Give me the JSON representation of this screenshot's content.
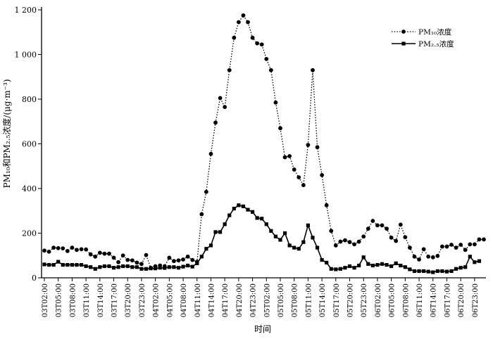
{
  "chart_data": {
    "type": "line",
    "xlabel": "时间",
    "ylabel": "PM₁₀和PM₂.₅浓度/(μg·m⁻³)",
    "ylim": [
      0,
      1200
    ],
    "yticks": [
      0,
      200,
      400,
      600,
      800,
      1000,
      1200
    ],
    "ytick_labels": [
      "0",
      "200",
      "400",
      "600",
      "800",
      "1 000",
      "1 200"
    ],
    "xtick_labels": [
      "03T02:00",
      "03T05:00",
      "03T08:00",
      "03T11:00",
      "03T14:00",
      "03T17:00",
      "03T20:00",
      "03T23:00",
      "04T02:00",
      "04T05:00",
      "04T08:00",
      "04T11:00",
      "04T14:00",
      "04T17:00",
      "04T20:00",
      "04T23:00",
      "05T02:00",
      "05T05:00",
      "05T08:00",
      "05T11:00",
      "05T14:00",
      "05T17:00",
      "05T20:00",
      "05T23:00",
      "06T02:00",
      "06T05:00",
      "06T08:00",
      "06T11:00",
      "06T14:00",
      "06T17:00",
      "06T20:00",
      "06T23:00"
    ],
    "legend_position": "top-right",
    "series": [
      {
        "name": "PM₁₀浓度",
        "marker": "circle",
        "line": "dotted",
        "values": [
          122,
          117,
          135,
          133,
          132,
          120,
          135,
          125,
          128,
          127,
          105,
          95,
          112,
          108,
          108,
          90,
          70,
          100,
          80,
          78,
          68,
          62,
          102,
          45,
          52,
          55,
          52,
          90,
          75,
          78,
          82,
          95,
          80,
          72,
          285,
          385,
          555,
          695,
          805,
          765,
          930,
          1075,
          1145,
          1175,
          1145,
          1075,
          1050,
          1045,
          980,
          930,
          785,
          670,
          540,
          545,
          485,
          450,
          415,
          595,
          930,
          585,
          460,
          325,
          210,
          145,
          162,
          168,
          160,
          150,
          162,
          185,
          220,
          255,
          235,
          235,
          220,
          180,
          165,
          238,
          182,
          135,
          95,
          82,
          128,
          95,
          92,
          98,
          140,
          140,
          148,
          135,
          148,
          125,
          150,
          150,
          172,
          172
        ]
      },
      {
        "name": "PM₂.₅浓度",
        "marker": "square",
        "line": "solid",
        "values": [
          60,
          58,
          58,
          72,
          58,
          58,
          58,
          58,
          58,
          52,
          48,
          40,
          48,
          52,
          52,
          45,
          48,
          52,
          52,
          48,
          48,
          40,
          40,
          42,
          42,
          45,
          44,
          48,
          48,
          45,
          50,
          55,
          50,
          65,
          95,
          130,
          145,
          205,
          205,
          240,
          280,
          310,
          325,
          320,
          305,
          295,
          268,
          265,
          240,
          210,
          185,
          170,
          200,
          145,
          135,
          130,
          160,
          235,
          180,
          135,
          80,
          68,
          40,
          38,
          40,
          45,
          52,
          45,
          55,
          92,
          62,
          55,
          58,
          62,
          58,
          52,
          65,
          55,
          48,
          38,
          30,
          30,
          30,
          28,
          25,
          30,
          30,
          28,
          30,
          40,
          45,
          48,
          95,
          70,
          75
        ]
      }
    ]
  }
}
